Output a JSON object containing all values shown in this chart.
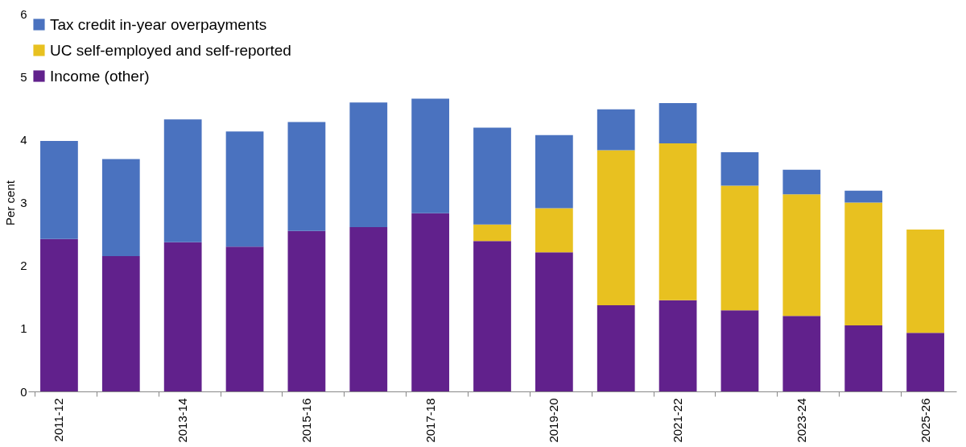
{
  "chart_data": {
    "type": "bar",
    "stacked": true,
    "ylabel": "Per cent",
    "categories": [
      "2011-12",
      null,
      "2013-14",
      null,
      "2015-16",
      null,
      "2017-18",
      null,
      "2019-20",
      null,
      "2021-22",
      null,
      "2023-24",
      null,
      "2025-26"
    ],
    "series": [
      {
        "name": "Income (other)",
        "color": "#61218c",
        "values": [
          2.42,
          2.15,
          2.37,
          2.3,
          2.55,
          2.61,
          2.83,
          2.39,
          2.21,
          1.37,
          1.45,
          1.29,
          1.2,
          1.05,
          0.93
        ]
      },
      {
        "name": "UC self-employed and self-reported",
        "color": "#e8c120",
        "values": [
          null,
          null,
          null,
          null,
          null,
          null,
          null,
          0.26,
          0.7,
          2.46,
          2.49,
          1.98,
          1.93,
          1.95,
          1.64
        ]
      },
      {
        "name": "Tax credit in-year overpayments",
        "color": "#4a72bf",
        "values": [
          1.56,
          1.54,
          1.95,
          1.83,
          1.73,
          1.98,
          1.82,
          1.54,
          1.16,
          0.65,
          0.64,
          0.53,
          0.39,
          0.19,
          null
        ]
      }
    ],
    "ylim": [
      0,
      6
    ],
    "yticks": [
      0,
      1,
      2,
      3,
      4,
      5,
      6
    ],
    "grid": false,
    "legend": "top left"
  }
}
